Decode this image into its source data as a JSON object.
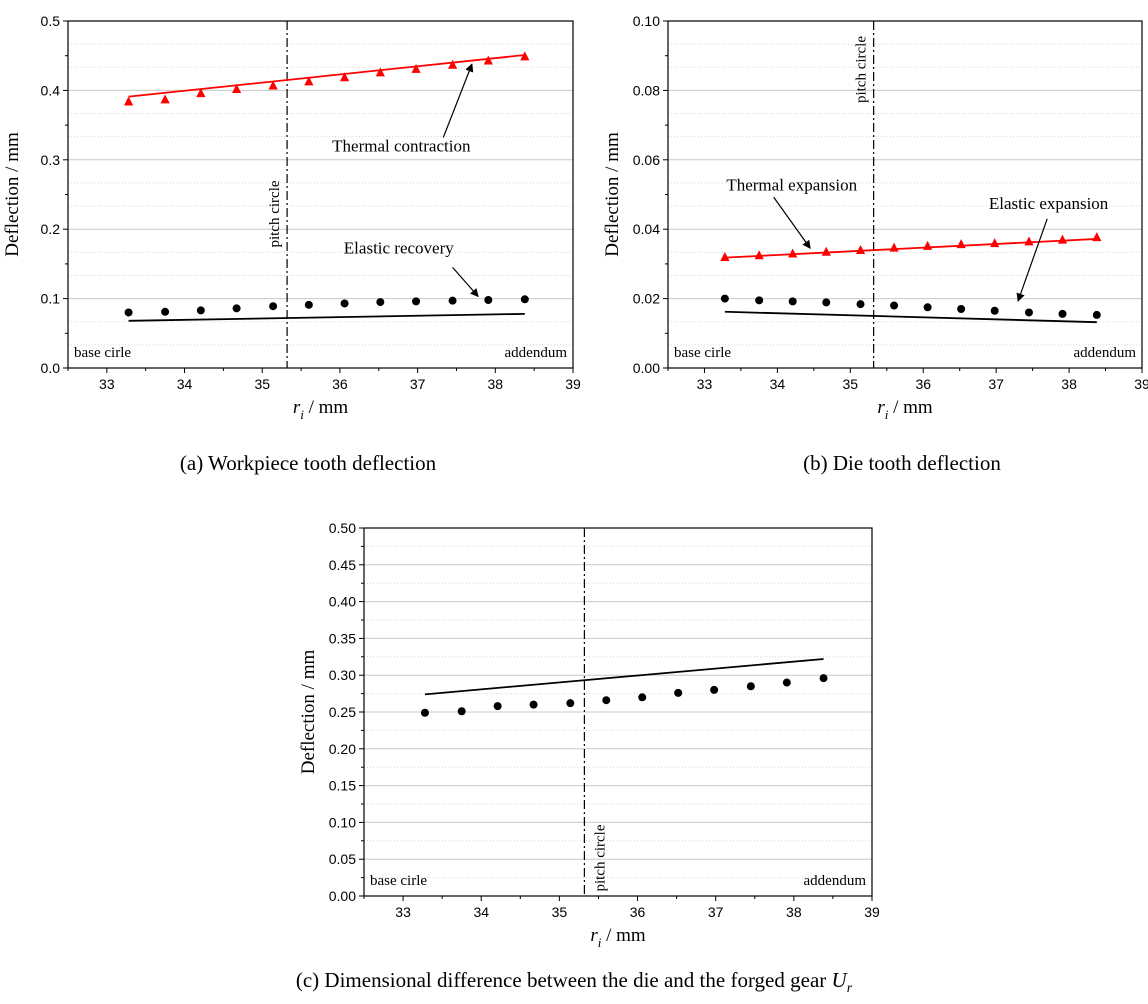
{
  "chart_data": [
    {
      "id": "a",
      "type": "scatter",
      "caption": "(a) Workpiece tooth deflection",
      "xlabel_var": "r",
      "xlabel_sub": "i",
      "xlabel_unit": " / mm",
      "ylabel": "Deflection / mm",
      "xlim": [
        32.5,
        39
      ],
      "ylim": [
        0,
        0.5
      ],
      "xticks": [
        "33",
        "34",
        "35",
        "36",
        "37",
        "38",
        "39"
      ],
      "yticks": [
        "0.0",
        "0.1",
        "0.2",
        "0.3",
        "0.4",
        "0.5"
      ],
      "grid": true,
      "pitch_circle_x": 35.32,
      "pitch_label": "pitch circle",
      "base_label": "base cirle",
      "addendum_label": "addendum",
      "series": [
        {
          "name": "Thermal contraction",
          "marker": "triangle",
          "color": "#ff0000",
          "x": [
            33.28,
            33.75,
            34.21,
            34.67,
            35.14,
            35.6,
            36.06,
            36.52,
            36.98,
            37.45,
            37.91,
            38.38
          ],
          "y": [
            0.384,
            0.387,
            0.396,
            0.402,
            0.407,
            0.413,
            0.419,
            0.426,
            0.431,
            0.437,
            0.443,
            0.449
          ]
        },
        {
          "name": "",
          "line": true,
          "color": "#ff0000",
          "x": [
            33.28,
            38.38
          ],
          "y": [
            0.391,
            0.451
          ]
        },
        {
          "name": "Elastic recovery",
          "marker": "circle",
          "color": "#000000",
          "x": [
            33.28,
            33.75,
            34.21,
            34.67,
            35.14,
            35.6,
            36.06,
            36.52,
            36.98,
            37.45,
            37.91,
            38.38
          ],
          "y": [
            0.08,
            0.081,
            0.083,
            0.086,
            0.089,
            0.091,
            0.093,
            0.095,
            0.096,
            0.097,
            0.098,
            0.099
          ]
        },
        {
          "name": "",
          "line": true,
          "color": "#000000",
          "x": [
            33.28,
            38.38
          ],
          "y": [
            0.068,
            0.078
          ]
        }
      ],
      "annotations": [
        {
          "text": "Thermal contraction",
          "tx": 35.9,
          "ty": 0.312,
          "ax": 37.33,
          "ay": 0.332,
          "hx": 37.7,
          "hy": 0.438
        },
        {
          "text": "Elastic recovery",
          "tx": 36.05,
          "ty": 0.165,
          "ax": 37.45,
          "ay": 0.145,
          "hx": 37.78,
          "hy": 0.103
        }
      ]
    },
    {
      "id": "b",
      "type": "scatter",
      "caption": "(b) Die tooth deflection",
      "xlabel_var": "r",
      "xlabel_sub": "i",
      "xlabel_unit": " / mm",
      "ylabel": "Deflection / mm",
      "xlim": [
        32.5,
        39
      ],
      "ylim": [
        0,
        0.1
      ],
      "xticks": [
        "33",
        "34",
        "35",
        "36",
        "37",
        "38",
        "39"
      ],
      "yticks": [
        "0.00",
        "0.02",
        "0.04",
        "0.06",
        "0.08",
        "0.10"
      ],
      "grid": true,
      "pitch_circle_x": 35.32,
      "pitch_label": "pitch circle",
      "base_label": "base cirle",
      "addendum_label": "addendum",
      "series": [
        {
          "name": "Thermal expansion",
          "marker": "triangle",
          "color": "#ff0000",
          "x": [
            33.28,
            33.75,
            34.21,
            34.67,
            35.14,
            35.6,
            36.06,
            36.52,
            36.98,
            37.45,
            37.91,
            38.38
          ],
          "y": [
            0.032,
            0.0325,
            0.033,
            0.0335,
            0.034,
            0.0347,
            0.0352,
            0.0357,
            0.036,
            0.0365,
            0.037,
            0.0377
          ]
        },
        {
          "name": "",
          "line": true,
          "color": "#ff0000",
          "x": [
            33.28,
            38.38
          ],
          "y": [
            0.0318,
            0.0372
          ]
        },
        {
          "name": "Elastic expansion",
          "marker": "circle",
          "color": "#000000",
          "x": [
            33.28,
            33.75,
            34.21,
            34.67,
            35.14,
            35.6,
            36.06,
            36.52,
            36.98,
            37.45,
            37.91,
            38.38
          ],
          "y": [
            0.02,
            0.0195,
            0.0192,
            0.0189,
            0.0184,
            0.018,
            0.0175,
            0.017,
            0.0165,
            0.016,
            0.0156,
            0.0153
          ]
        },
        {
          "name": "",
          "line": true,
          "color": "#000000",
          "x": [
            33.28,
            38.38
          ],
          "y": [
            0.0162,
            0.0132
          ]
        }
      ],
      "annotations": [
        {
          "text": "Thermal expansion",
          "tx": 33.3,
          "ty": 0.0512,
          "ax": 33.95,
          "ay": 0.0492,
          "hx": 34.45,
          "hy": 0.0345
        },
        {
          "text": "Elastic expansion",
          "tx": 36.9,
          "ty": 0.0458,
          "ax": 37.7,
          "ay": 0.043,
          "hx": 37.3,
          "hy": 0.0193
        }
      ]
    },
    {
      "id": "c",
      "type": "scatter",
      "caption_main": "(c) Dimensional difference between the die and the forged gear ",
      "caption_var": "U",
      "caption_sub": "r",
      "xlabel_var": "r",
      "xlabel_sub": "i",
      "xlabel_unit": " / mm",
      "ylabel": "Deflection / mm",
      "xlim": [
        32.5,
        39
      ],
      "ylim": [
        0,
        0.5
      ],
      "xticks": [
        "33",
        "34",
        "35",
        "36",
        "37",
        "38",
        "39"
      ],
      "yticks": [
        "0.00",
        "0.05",
        "0.10",
        "0.15",
        "0.20",
        "0.25",
        "0.30",
        "0.35",
        "0.40",
        "0.45",
        "0.50"
      ],
      "grid": true,
      "pitch_circle_x": 35.32,
      "pitch_label": "pitch circle",
      "base_label": "base cirle",
      "addendum_label": "addendum",
      "series": [
        {
          "name": "",
          "marker": "circle",
          "color": "#000000",
          "x": [
            33.28,
            33.75,
            34.21,
            34.67,
            35.14,
            35.6,
            36.06,
            36.52,
            36.98,
            37.45,
            37.91,
            38.38
          ],
          "y": [
            0.249,
            0.251,
            0.258,
            0.26,
            0.262,
            0.266,
            0.27,
            0.276,
            0.28,
            0.285,
            0.29,
            0.296
          ]
        },
        {
          "name": "",
          "line": true,
          "color": "#000000",
          "x": [
            33.28,
            38.38
          ],
          "y": [
            0.274,
            0.322
          ]
        }
      ],
      "annotations": []
    }
  ]
}
